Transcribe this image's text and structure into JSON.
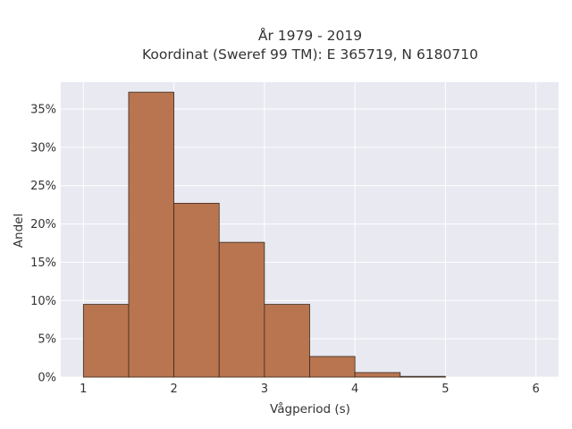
{
  "chart_data": {
    "type": "bar",
    "title": "År 1979 - 2019",
    "subtitle": "Koordinat (Sweref 99 TM): E 365719, N 6180710",
    "xlabel": "Vågperiod (s)",
    "ylabel": "Andel",
    "xlim": [
      0.75,
      6.25
    ],
    "ylim": [
      0,
      0.385
    ],
    "x_ticks": [
      1,
      2,
      3,
      4,
      5,
      6
    ],
    "y_ticks": [
      0,
      0.05,
      0.1,
      0.15,
      0.2,
      0.25,
      0.3,
      0.35
    ],
    "y_tick_labels": [
      "0%",
      "5%",
      "10%",
      "15%",
      "20%",
      "25%",
      "30%",
      "35%"
    ],
    "bin_width": 0.5,
    "bins": [
      {
        "x0": 1.0,
        "x1": 1.5,
        "value": 0.095
      },
      {
        "x0": 1.5,
        "x1": 2.0,
        "value": 0.372
      },
      {
        "x0": 2.0,
        "x1": 2.5,
        "value": 0.227
      },
      {
        "x0": 2.5,
        "x1": 3.0,
        "value": 0.176
      },
      {
        "x0": 3.0,
        "x1": 3.5,
        "value": 0.095
      },
      {
        "x0": 3.5,
        "x1": 4.0,
        "value": 0.027
      },
      {
        "x0": 4.0,
        "x1": 4.5,
        "value": 0.006
      },
      {
        "x0": 4.5,
        "x1": 5.0,
        "value": 0.001
      }
    ],
    "grid": true,
    "colors": {
      "bar_fill": "#b87550",
      "bar_edge": "#3a2a20",
      "plot_bg": "#e8e9f1",
      "grid": "#ffffff"
    }
  }
}
